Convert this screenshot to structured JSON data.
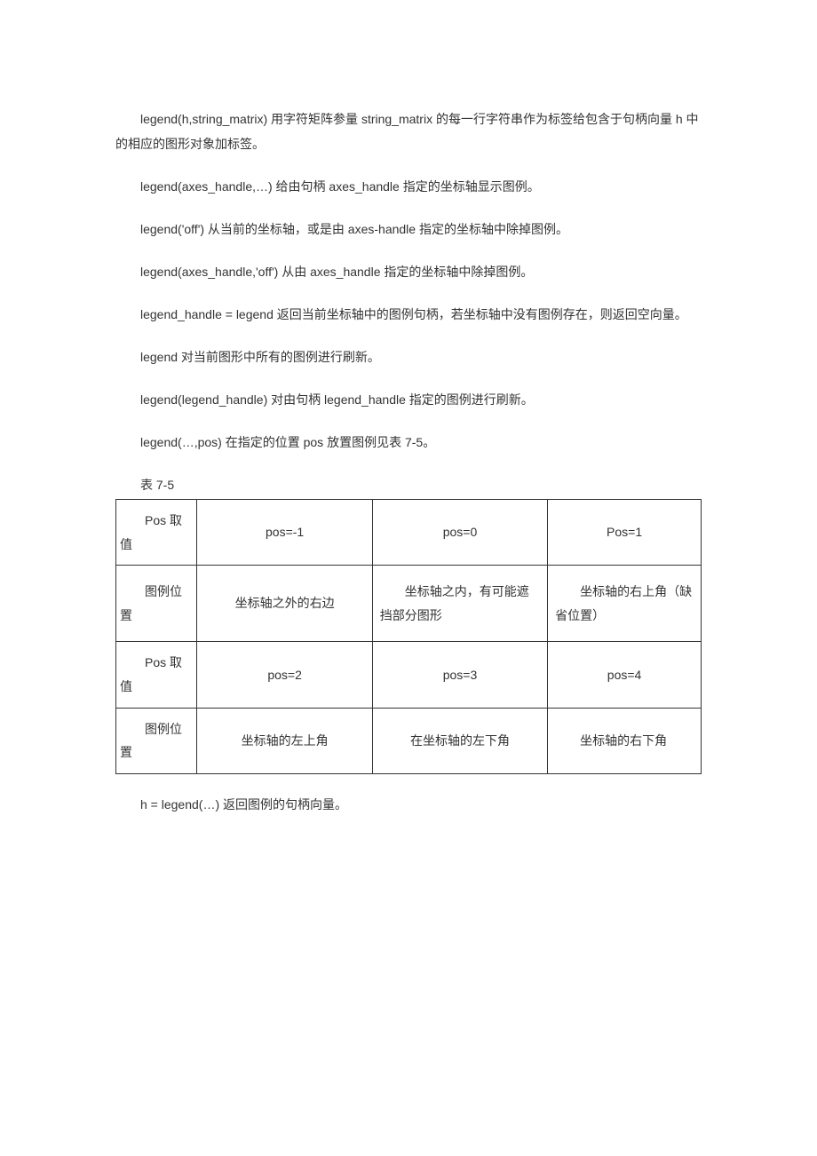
{
  "paragraphs": {
    "p1": "legend(h,string_matrix)  用字符矩阵参量 string_matrix 的每一行字符串作为标签给包含于句柄向量 h 中的相应的图形对象加标签。",
    "p2": "legend(axes_handle,…)  给由句柄 axes_handle 指定的坐标轴显示图例。",
    "p3": "legend('off')  从当前的坐标轴，或是由 axes-handle 指定的坐标轴中除掉图例。",
    "p4": "legend(axes_handle,'off')  从由 axes_handle 指定的坐标轴中除掉图例。",
    "p5": "legend_handle = legend  返回当前坐标轴中的图例句柄，若坐标轴中没有图例存在，则返回空向量。",
    "p6": "legend  对当前图形中所有的图例进行刷新。",
    "p7": "legend(legend_handle)  对由句柄 legend_handle 指定的图例进行刷新。",
    "p8": "legend(…,pos)  在指定的位置 pos 放置图例见表 7-5。",
    "table_caption": "表 7-5",
    "p9": "h = legend(…)  返回图例的句柄向量。"
  },
  "table": {
    "rows": [
      {
        "c1": "Pos 取值",
        "c2": "pos=-1",
        "c3": "pos=0",
        "c4": "Pos=1",
        "c3_class": "col3",
        "c4_class": "col4"
      },
      {
        "c1": "图例位置",
        "c2": "坐标轴之外的右边",
        "c3": "坐标轴之内，有可能遮挡部分图形",
        "c4": "坐标轴的右上角（缺省位置）",
        "c3_class": "col3-left",
        "c4_class": "col4-left"
      },
      {
        "c1": "Pos 取值",
        "c2": "pos=2",
        "c3": "pos=3",
        "c4": "pos=4",
        "c3_class": "col3",
        "c4_class": "col4"
      },
      {
        "c1": "图例位置",
        "c2": "坐标轴的左上角",
        "c3": "在坐标轴的左下角",
        "c4": "坐标轴的右下角",
        "c3_class": "col3",
        "c4_class": "col4-left"
      }
    ]
  }
}
